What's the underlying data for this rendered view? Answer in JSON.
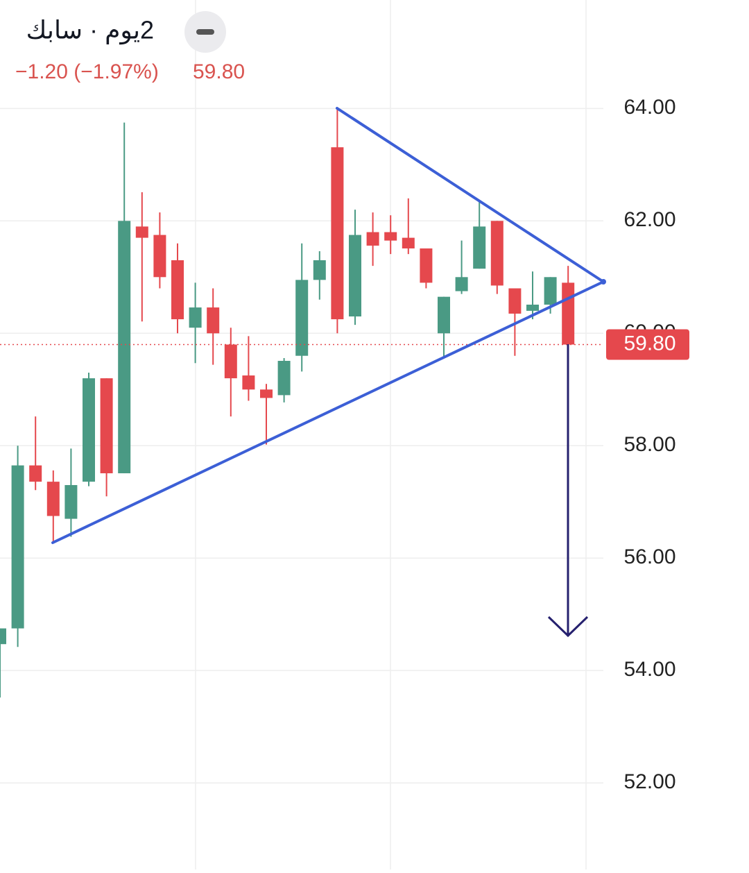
{
  "header": {
    "symbol_line": "2يوم · سابك",
    "change": "−1.20 (−1.97%)",
    "price": "59.80"
  },
  "chart_data": {
    "type": "candlestick",
    "open": [
      54.47,
      54.75,
      57.65,
      57.36,
      56.7,
      57.36,
      59.2,
      57.51,
      61.9,
      61.75,
      61.3,
      60.1,
      60.46,
      59.8,
      59.25,
      59.0,
      58.9,
      59.6,
      60.95,
      63.31,
      60.3,
      61.8,
      61.8,
      61.7,
      61.51,
      60.0,
      60.75,
      61.15,
      62.0,
      60.8,
      60.4,
      60.51,
      60.9
    ],
    "high": [
      54.75,
      58.0,
      58.52,
      57.56,
      57.95,
      59.3,
      59.2,
      63.75,
      62.51,
      62.15,
      61.6,
      60.9,
      60.8,
      60.1,
      59.95,
      59.1,
      59.56,
      61.6,
      61.46,
      64.0,
      62.2,
      62.15,
      62.1,
      62.4,
      61.51,
      60.65,
      61.65,
      62.35,
      62.0,
      60.8,
      61.1,
      61.0,
      61.2
    ],
    "low": [
      53.52,
      54.42,
      57.21,
      56.27,
      56.38,
      57.28,
      57.1,
      57.51,
      60.21,
      60.8,
      60.0,
      59.47,
      59.44,
      58.52,
      58.8,
      58.02,
      58.77,
      59.32,
      60.6,
      60.0,
      60.15,
      61.2,
      61.41,
      61.41,
      60.8,
      59.56,
      60.7,
      61.15,
      60.7,
      59.6,
      60.25,
      60.35,
      59.8
    ],
    "close": [
      54.75,
      57.65,
      57.36,
      56.75,
      57.3,
      59.2,
      57.51,
      62.0,
      61.7,
      61.0,
      60.25,
      60.46,
      60.0,
      59.2,
      59.0,
      58.85,
      59.51,
      60.95,
      61.3,
      60.25,
      61.75,
      61.56,
      61.65,
      61.51,
      60.9,
      60.65,
      61.0,
      61.9,
      60.85,
      60.35,
      60.51,
      61.0,
      59.8
    ],
    "up_color": "#4a9a84",
    "down_color": "#e5484d",
    "ylim": [
      50.46,
      65.93
    ],
    "yticks": [
      {
        "value": 52,
        "label": "52.00"
      },
      {
        "value": 54,
        "label": "54.00"
      },
      {
        "value": 56,
        "label": "56.00"
      },
      {
        "value": 58,
        "label": "58.00"
      },
      {
        "value": 60,
        "label": "60.00"
      },
      {
        "value": 62,
        "label": "62.00"
      },
      {
        "value": 64,
        "label": "64.00"
      }
    ],
    "grid": true
  }
}
